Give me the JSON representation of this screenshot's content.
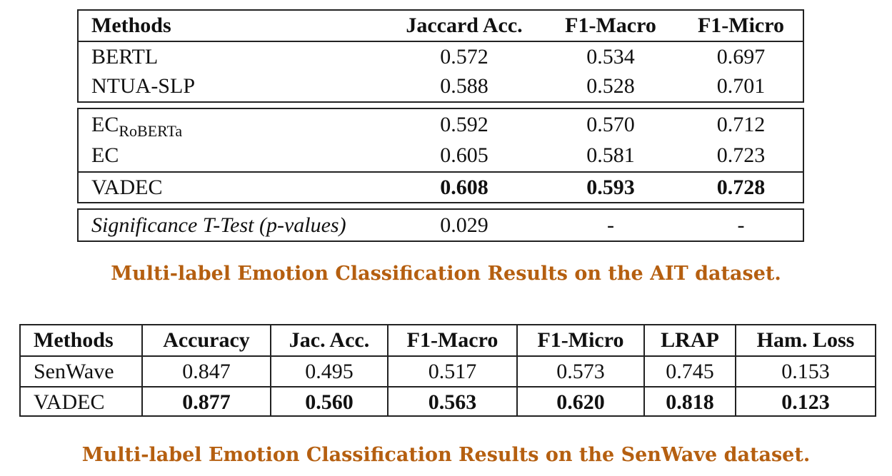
{
  "table1": {
    "headers": [
      "Methods",
      "Jaccard Acc.",
      "F1-Macro",
      "F1-Micro"
    ],
    "group1": [
      {
        "method": "BERTL",
        "jaccard": "0.572",
        "f1_macro": "0.534",
        "f1_micro": "0.697"
      },
      {
        "method": "NTUA-SLP",
        "jaccard": "0.588",
        "f1_macro": "0.528",
        "f1_micro": "0.701"
      }
    ],
    "group2": [
      {
        "method": "EC",
        "method_sub": "RoBERTa",
        "jaccard": "0.592",
        "f1_macro": "0.570",
        "f1_micro": "0.712"
      },
      {
        "method": "EC",
        "jaccard": "0.605",
        "f1_macro": "0.581",
        "f1_micro": "0.723"
      },
      {
        "method": "VADEC",
        "jaccard": "0.608",
        "f1_macro": "0.593",
        "f1_micro": "0.728"
      }
    ],
    "significance": {
      "method": "Significance T-Test (p-values)",
      "jaccard": "0.029",
      "f1_macro": "-",
      "f1_micro": "-"
    },
    "caption": "Multi-label Emotion Classification Results on the AIT dataset."
  },
  "table2": {
    "headers": [
      "Methods",
      "Accuracy",
      "Jac. Acc.",
      "F1-Macro",
      "F1-Micro",
      "LRAP",
      "Ham. Loss"
    ],
    "rows": [
      [
        "SenWave",
        "0.847",
        "0.495",
        "0.517",
        "0.573",
        "0.745",
        "0.153"
      ],
      [
        "VADEC",
        "0.877",
        "0.560",
        "0.563",
        "0.620",
        "0.818",
        "0.123"
      ]
    ],
    "caption": "Multi-label Emotion Classification Results on the SenWave dataset."
  }
}
